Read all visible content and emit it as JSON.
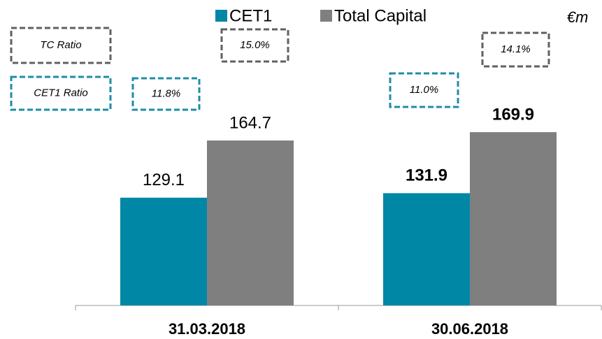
{
  "chart_data": {
    "type": "bar",
    "categories": [
      "31.03.2018",
      "30.06.2018"
    ],
    "series": [
      {
        "name": "CET1",
        "color": "#0087a6",
        "values": [
          129.1,
          131.9
        ]
      },
      {
        "name": "Total Capital",
        "color": "#7f7f7f",
        "values": [
          164.7,
          169.9
        ]
      }
    ],
    "ylim": [
      62,
      250
    ],
    "unit_label": "€m",
    "ratios": [
      {
        "name": "TC Ratio",
        "color": "#606060",
        "values": [
          15.0,
          14.1
        ],
        "value_labels": [
          "15.0%",
          "14.1%"
        ]
      },
      {
        "name": "CET1 Ratio",
        "color": "#1f8ca7",
        "values": [
          11.8,
          11.0
        ],
        "value_labels": [
          "11.8%",
          "11.0%"
        ]
      }
    ]
  }
}
